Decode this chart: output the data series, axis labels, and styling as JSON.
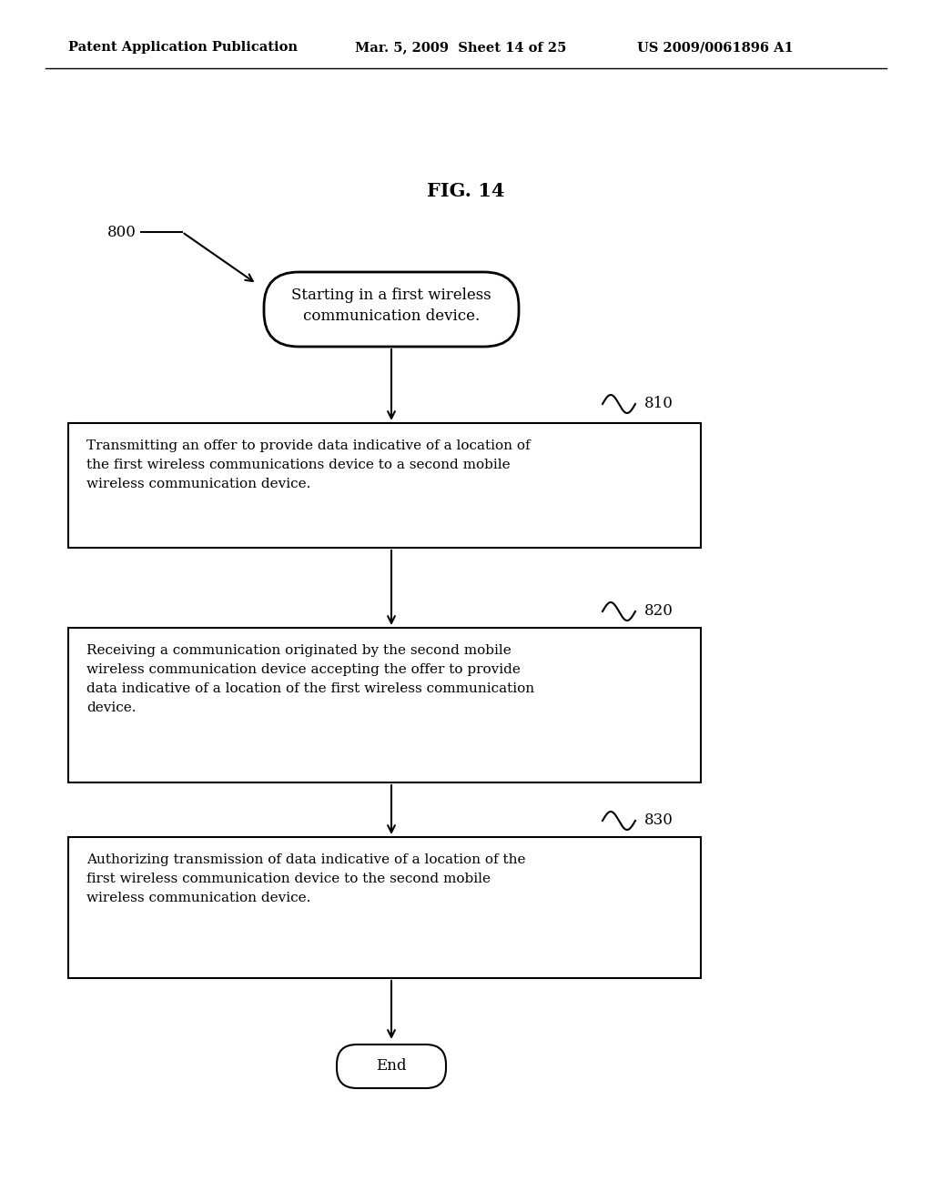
{
  "title": "FIG. 14",
  "header_left": "Patent Application Publication",
  "header_mid": "Mar. 5, 2009  Sheet 14 of 25",
  "header_right": "US 2009/0061896 A1",
  "fig_label": "800",
  "start_text": "Starting in a first wireless\ncommunication device.",
  "boxes": [
    {
      "label": "810",
      "text": "Transmitting an offer to provide data indicative of a location of\nthe first wireless communications device to a second mobile\nwireless communication device."
    },
    {
      "label": "820",
      "text": "Receiving a communication originated by the second mobile\nwireless communication device accepting the offer to provide\ndata indicative of a location of the first wireless communication\ndevice."
    },
    {
      "label": "830",
      "text": "Authorizing transmission of data indicative of a location of the\nfirst wireless communication device to the second mobile\nwireless communication device."
    }
  ],
  "end_text": "End",
  "bg_color": "#ffffff",
  "text_color": "#000000"
}
